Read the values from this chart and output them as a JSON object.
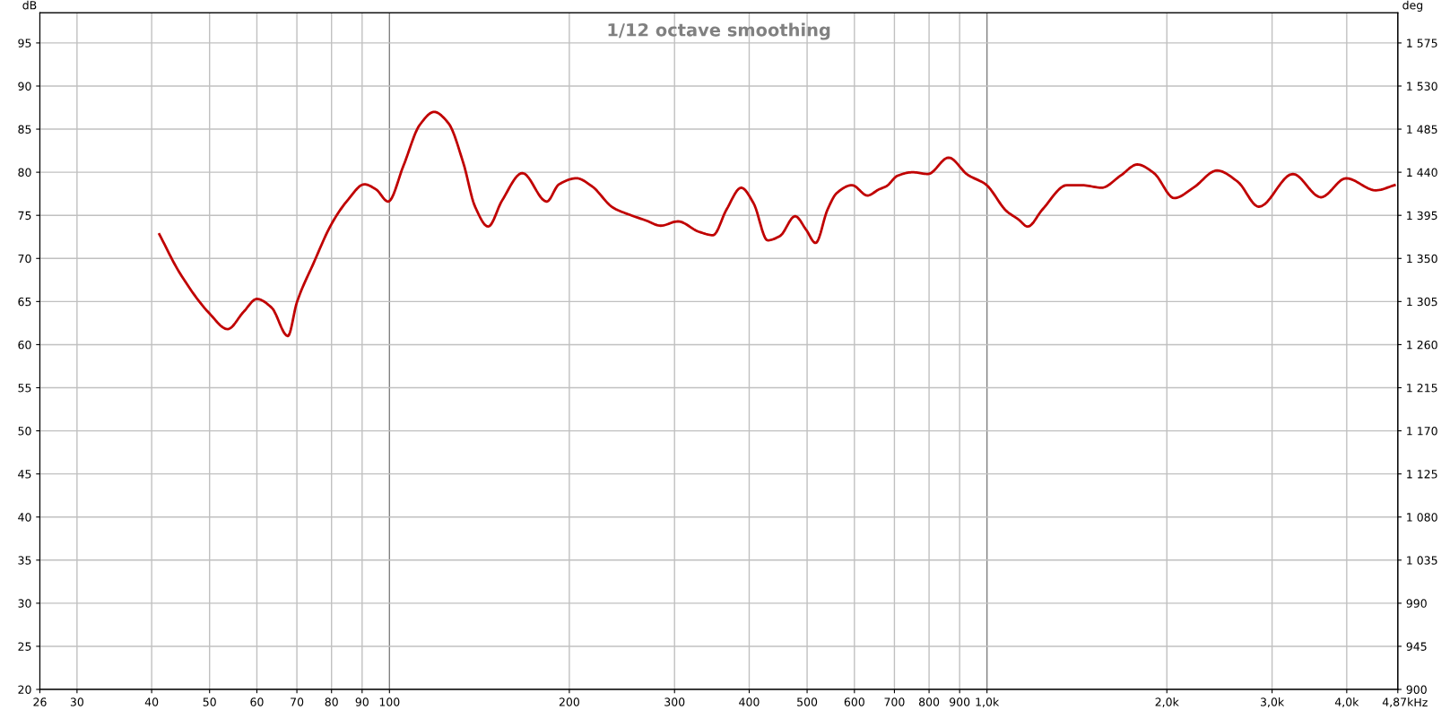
{
  "chart_data": {
    "type": "line",
    "title": "1/12 octave smoothing",
    "ylabel": "dB",
    "y2label": "deg",
    "log": "x",
    "grid": true,
    "legend": false,
    "marker": "none",
    "line_style": "solid",
    "xlim": [
      26,
      4870
    ],
    "ylim": [
      20,
      98.5
    ],
    "y2lim": [
      900,
      1606.5
    ],
    "xticks": [
      26,
      30,
      40,
      50,
      60,
      70,
      80,
      90,
      100,
      200,
      300,
      400,
      500,
      600,
      700,
      800,
      900,
      {
        "value": 1000,
        "label": "1,0k"
      },
      {
        "value": 2000,
        "label": "2,0k"
      },
      {
        "value": 3000,
        "label": "3,0k"
      },
      {
        "value": 4000,
        "label": "4,0k"
      },
      {
        "value": 4870,
        "label": "4,87k"
      }
    ],
    "xlabel": "Hz",
    "yticks": [
      20,
      25,
      30,
      35,
      40,
      45,
      50,
      55,
      60,
      65,
      70,
      75,
      80,
      85,
      90,
      95
    ],
    "y2ticks": [
      900,
      {
        "value": 945,
        "label": "945"
      },
      {
        "value": 990,
        "label": "990"
      },
      {
        "value": 1035,
        "label": "1 035"
      },
      {
        "value": 1080,
        "label": "1 080"
      },
      {
        "value": 1125,
        "label": "1 125"
      },
      {
        "value": 1170,
        "label": "1 170"
      },
      {
        "value": 1215,
        "label": "1 215"
      },
      {
        "value": 1260,
        "label": "1 260"
      },
      {
        "value": 1305,
        "label": "1 305"
      },
      {
        "value": 1350,
        "label": "1 350"
      },
      {
        "value": 1395,
        "label": "1 395"
      },
      {
        "value": 1440,
        "label": "1 440"
      },
      {
        "value": 1485,
        "label": "1 485"
      },
      {
        "value": 1530,
        "label": "1 530"
      },
      {
        "value": 1575,
        "label": "1 575"
      }
    ],
    "series": [
      {
        "color": "#c00000",
        "x": [
          41.2,
          44.5,
          50,
          53.6,
          57,
          60,
          63.5,
          67.6,
          70,
          74.7,
          80,
          85,
          90.8,
          95,
          99.5,
          105.6,
          112.4,
          118.8,
          125.5,
          132.9,
          139.1,
          146.3,
          154.3,
          166.9,
          183.3,
          192.2,
          205.6,
          218,
          236.6,
          253.9,
          268.8,
          284.4,
          304,
          329.4,
          347.9,
          366.7,
          387.9,
          406.8,
          429.4,
          450.3,
          477.4,
          498.4,
          516.6,
          541.2,
          560.8,
          594.4,
          631,
          659,
          679.3,
          708.8,
          750.9,
          797,
          862.3,
          928.4,
          995,
          1078,
          1130,
          1170,
          1239,
          1361,
          1443,
          1555,
          1673,
          1785,
          1903,
          2058,
          2215,
          2427,
          2628,
          2851,
          3250,
          3622,
          3990,
          4474,
          4810
        ],
        "values": [
          72.8,
          68.4,
          63.6,
          61.8,
          63.8,
          65.3,
          64.3,
          61.0,
          64.9,
          69.5,
          74.0,
          76.7,
          78.6,
          78.0,
          76.6,
          80.8,
          85.5,
          87.0,
          85.7,
          81.1,
          76.0,
          73.7,
          76.7,
          79.9,
          76.6,
          78.6,
          79.3,
          78.4,
          75.9,
          75.0,
          74.4,
          73.8,
          74.3,
          73.1,
          72.7,
          75.7,
          78.2,
          76.4,
          72.1,
          72.6,
          74.9,
          73.3,
          71.8,
          75.7,
          77.6,
          78.5,
          77.3,
          78.0,
          78.4,
          79.6,
          80.0,
          79.8,
          81.7,
          79.7,
          78.6,
          75.5,
          74.5,
          73.7,
          75.7,
          78.5,
          78.5,
          78.2,
          79.6,
          80.9,
          79.9,
          77.0,
          78.2,
          80.2,
          78.9,
          76.0,
          79.8,
          77.1,
          79.3,
          77.9,
          78.5
        ]
      }
    ]
  }
}
